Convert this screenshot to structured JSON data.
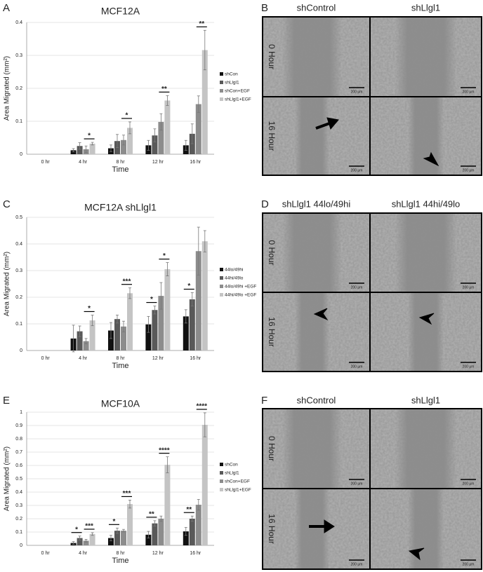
{
  "chart_data": [
    {
      "type": "bar",
      "panel_label": "A",
      "title": "MCF12A",
      "y_label": "Area Migrated (mm²)",
      "x_label": "Time",
      "categories": [
        "0 hr",
        "4 hr",
        "8 hr",
        "12 hr",
        "16 hr"
      ],
      "series": [
        {
          "name": "shCon",
          "color": "#111111",
          "values": [
            0,
            0.012,
            0.018,
            0.027,
            0.027
          ],
          "errors": [
            0,
            0.005,
            0.01,
            0.015,
            0.015
          ]
        },
        {
          "name": "shLlgl1",
          "color": "#595959",
          "values": [
            0,
            0.025,
            0.04,
            0.057,
            0.062
          ],
          "errors": [
            0,
            0.01,
            0.02,
            0.02,
            0.03
          ]
        },
        {
          "name": "shCon+EGF",
          "color": "#8c8c8c",
          "values": [
            0,
            0.015,
            0.043,
            0.098,
            0.152
          ],
          "errors": [
            0,
            0.01,
            0.015,
            0.025,
            0.025
          ]
        },
        {
          "name": "shLlgl1+EGF",
          "color": "#c4c4c4",
          "values": [
            0,
            0.032,
            0.08,
            0.163,
            0.316
          ],
          "errors": [
            0,
            0.004,
            0.018,
            0.015,
            0.06
          ]
        }
      ],
      "ylim": [
        0,
        0.4
      ],
      "yticks": [
        0,
        0.1,
        0.2,
        0.3,
        0.4
      ],
      "significance": [
        {
          "category": 1,
          "pair": [
            2,
            3
          ],
          "label": "*"
        },
        {
          "category": 2,
          "pair": [
            2,
            3
          ],
          "label": "*"
        },
        {
          "category": 3,
          "pair": [
            2,
            3
          ],
          "label": "**"
        },
        {
          "category": 4,
          "pair": [
            2,
            3
          ],
          "label": "**"
        }
      ]
    },
    {
      "type": "bar",
      "panel_label": "C",
      "title": "MCF12A shLlgl1",
      "y_label": "Area Migrated (mm²)",
      "x_label": "Time",
      "categories": [
        "0 hr",
        "4 hr",
        "8 hr",
        "12 hr",
        "16 hr"
      ],
      "series": [
        {
          "name": "44lo/49hi",
          "color": "#111111",
          "values": [
            0,
            0.045,
            0.075,
            0.098,
            0.128
          ],
          "errors": [
            0,
            0.05,
            0.03,
            0.03,
            0.025
          ]
        },
        {
          "name": "44hi/49lo",
          "color": "#595959",
          "values": [
            0,
            0.072,
            0.118,
            0.152,
            0.192
          ],
          "errors": [
            0,
            0.02,
            0.015,
            0.015,
            0.025
          ]
        },
        {
          "name": "44lo/49hi +EGF",
          "color": "#8c8c8c",
          "values": [
            0,
            0.035,
            0.09,
            0.205,
            0.373
          ],
          "errors": [
            0,
            0.01,
            0.02,
            0.05,
            0.09
          ]
        },
        {
          "name": "44hi/49lo +EGF",
          "color": "#c4c4c4",
          "values": [
            0,
            0.113,
            0.215,
            0.305,
            0.41
          ],
          "errors": [
            0,
            0.02,
            0.02,
            0.025,
            0.04
          ]
        }
      ],
      "ylim": [
        0,
        0.5
      ],
      "yticks": [
        0,
        0.1,
        0.2,
        0.3,
        0.4,
        0.5
      ],
      "significance": [
        {
          "category": 1,
          "pair": [
            2,
            3
          ],
          "label": "*"
        },
        {
          "category": 2,
          "pair": [
            2,
            3
          ],
          "label": "***"
        },
        {
          "category": 3,
          "pair": [
            0,
            1
          ],
          "label": "*"
        },
        {
          "category": 3,
          "pair": [
            2,
            3
          ],
          "label": "*"
        },
        {
          "category": 4,
          "pair": [
            0,
            1
          ],
          "label": "*"
        }
      ]
    },
    {
      "type": "bar",
      "panel_label": "E",
      "title": "MCF10A",
      "y_label": "Area Migrated (mm²)",
      "x_label": "Time",
      "categories": [
        "0 hr",
        "4 hr",
        "8 hr",
        "12 hr",
        "16 hr"
      ],
      "series": [
        {
          "name": "shCon",
          "color": "#111111",
          "values": [
            0,
            0.018,
            0.055,
            0.08,
            0.105
          ],
          "errors": [
            0,
            0.01,
            0.02,
            0.025,
            0.03
          ]
        },
        {
          "name": "shLlgl1",
          "color": "#595959",
          "values": [
            0,
            0.055,
            0.11,
            0.165,
            0.2
          ],
          "errors": [
            0,
            0.015,
            0.02,
            0.02,
            0.02
          ]
        },
        {
          "name": "shCon+EGF",
          "color": "#8c8c8c",
          "values": [
            0,
            0.035,
            0.11,
            0.2,
            0.305
          ],
          "errors": [
            0,
            0.01,
            0.01,
            0.02,
            0.04
          ]
        },
        {
          "name": "shLlgl1+EGF",
          "color": "#c4c4c4",
          "values": [
            0,
            0.085,
            0.31,
            0.605,
            0.905
          ],
          "errors": [
            0,
            0.01,
            0.03,
            0.06,
            0.09
          ]
        }
      ],
      "ylim": [
        0,
        1
      ],
      "yticks": [
        0,
        0.1,
        0.2,
        0.3,
        0.4,
        0.5,
        0.6,
        0.7,
        0.8,
        0.9,
        1
      ],
      "significance": [
        {
          "category": 1,
          "pair": [
            0,
            1
          ],
          "label": "*"
        },
        {
          "category": 1,
          "pair": [
            2,
            3
          ],
          "label": "***"
        },
        {
          "category": 2,
          "pair": [
            0,
            1
          ],
          "label": "*"
        },
        {
          "category": 2,
          "pair": [
            2,
            3
          ],
          "label": "***"
        },
        {
          "category": 3,
          "pair": [
            0,
            1
          ],
          "label": "**"
        },
        {
          "category": 3,
          "pair": [
            2,
            3
          ],
          "label": "****"
        },
        {
          "category": 4,
          "pair": [
            0,
            1
          ],
          "label": "**"
        },
        {
          "category": 4,
          "pair": [
            2,
            3
          ],
          "label": "****"
        }
      ]
    }
  ],
  "figure_panels": [
    {
      "panel_label": "B",
      "columns": [
        "shControl",
        "shLlgl1"
      ],
      "rows": [
        "0 Hour",
        "16 Hour"
      ],
      "scale_bar": "200 µm"
    },
    {
      "panel_label": "D",
      "columns": [
        "shLlgl1 44lo/49hi",
        "shLlgl1 44hi/49lo"
      ],
      "rows": [
        "0 Hour",
        "16 Hour"
      ],
      "scale_bar": "200 µm"
    },
    {
      "panel_label": "F",
      "columns": [
        "shControl",
        "shLlgl1"
      ],
      "rows": [
        "0 Hour",
        "16 Hour"
      ],
      "scale_bar": "200 µm"
    }
  ]
}
